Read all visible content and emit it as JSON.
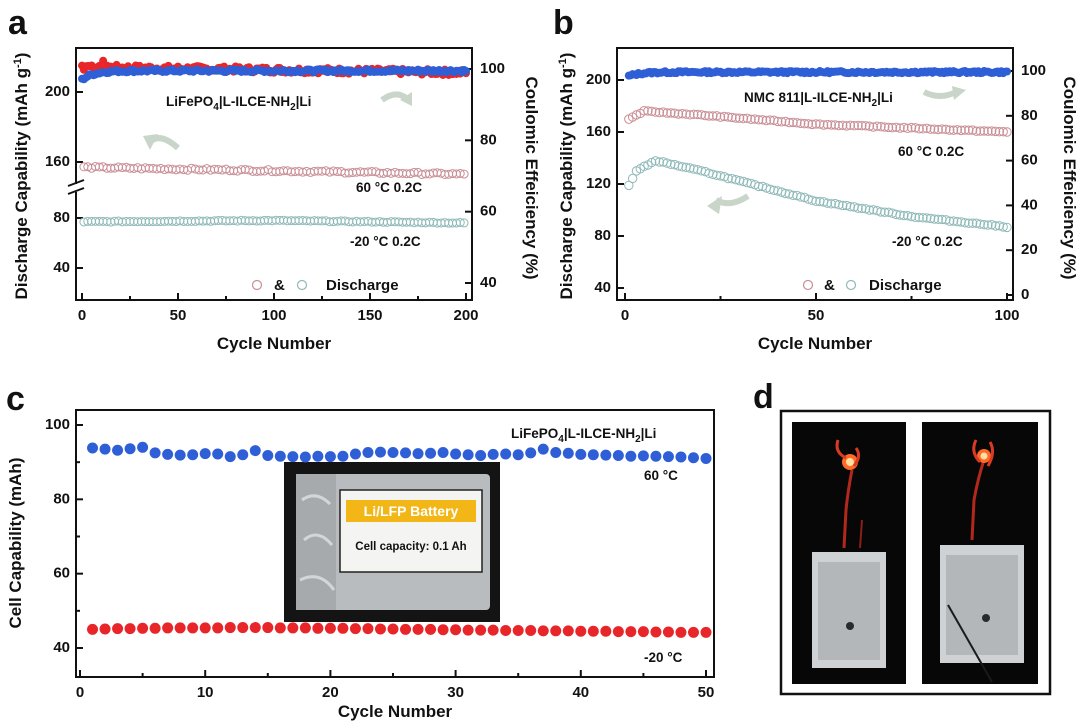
{
  "colors": {
    "red": "#e8262a",
    "blue": "#2f5fd6",
    "pink_open": "#c98f96",
    "cyan_open": "#8fb9b9",
    "arrow": "#c9d5c9",
    "inset_label_bg": "#f2b616"
  },
  "panel_letters": [
    "a",
    "b",
    "c",
    "d"
  ],
  "chart_data": [
    {
      "panel": "a",
      "type": "scatter",
      "xlabel": "Cycle Number",
      "ylabel_left": "Discharge Capability (mAh g",
      "ylabel_left_sup": "-1",
      "ylabel_left_close": ")",
      "ylabel_right": "Coulomic Effeiciency (%)",
      "xlim": [
        0,
        200
      ],
      "xticks": [
        "0",
        "50",
        "100",
        "150",
        "200"
      ],
      "yticks_left": [
        "40",
        "80",
        "160",
        "200"
      ],
      "yticks_right": [
        "40",
        "60",
        "80",
        "100"
      ],
      "ylim_right": [
        40,
        100
      ],
      "axis_break": "between 80 and 160",
      "label_main": "LiFePO",
      "label_sub": "4",
      "label_mid": "|L-ILCE-NH",
      "label_sub2": "2",
      "label_end": "|Li",
      "annotation_60": "60 °C 0.2C",
      "annotation_m20": "-20 °C 0.2C",
      "legend_amp": "&",
      "legend_discharge": "Discharge",
      "series": [
        {
          "name": "60 °C 0.2C",
          "axis": "left",
          "marker": "open",
          "y_start": 157,
          "y_mid": 155,
          "y_end": 153
        },
        {
          "name": "-20 °C 0.2C",
          "axis": "left",
          "marker": "open",
          "y_start": 77,
          "y_mid": 78,
          "y_end": 76
        },
        {
          "axis": "right",
          "marker": "filled",
          "y_start": 97,
          "y_end": 99.5
        },
        {
          "axis": "right",
          "marker": "filled",
          "y_start": 100.5,
          "y_end": 99
        }
      ]
    },
    {
      "panel": "b",
      "type": "scatter",
      "xlabel": "Cycle Number",
      "ylabel_left": "Discharge Capability (mAh g",
      "ylabel_left_sup": "-1",
      "ylabel_left_close": ")",
      "ylabel_right": "Coulomic Effeiciency (%)",
      "xlim": [
        0,
        100
      ],
      "xticks": [
        "0",
        "50",
        "100"
      ],
      "yticks_left": [
        "40",
        "80",
        "120",
        "160",
        "200"
      ],
      "ylim_left": [
        30,
        215
      ],
      "yticks_right": [
        "0",
        "20",
        "40",
        "60",
        "80",
        "100"
      ],
      "ylim_right": [
        0,
        105
      ],
      "label_main": "NMC 811|L-ILCE-NH",
      "label_sub": "2",
      "label_end": "|Li",
      "annotation_60": "60 °C 0.2C",
      "annotation_m20": "-20 °C 0.2C",
      "legend_amp": "&",
      "legend_discharge": "Discharge",
      "series": [
        {
          "name": "60 °C 0.2C",
          "axis": "left",
          "marker": "open",
          "points": [
            [
              1,
              170
            ],
            [
              5,
              176
            ],
            [
              20,
              173
            ],
            [
              50,
              166
            ],
            [
              100,
              160
            ]
          ]
        },
        {
          "name": "-20 °C 0.2C",
          "axis": "left",
          "marker": "open",
          "points": [
            [
              1,
              119
            ],
            [
              3,
              130
            ],
            [
              8,
              138
            ],
            [
              20,
              130
            ],
            [
              50,
              107
            ],
            [
              75,
              95
            ],
            [
              100,
              87
            ]
          ]
        },
        {
          "axis": "right",
          "marker": "filled",
          "y_start": 97,
          "y_end": 99.5
        }
      ]
    },
    {
      "panel": "c",
      "type": "scatter",
      "xlabel": "Cycle Number",
      "ylabel": "Cell Capability (mAh)",
      "xlim": [
        0,
        50
      ],
      "xticks": [
        "0",
        "10",
        "20",
        "30",
        "40",
        "50"
      ],
      "ylim": [
        35,
        103
      ],
      "yticks": [
        "40",
        "60",
        "80",
        "100"
      ],
      "label_main": "LiFePO",
      "label_sub": "4",
      "label_mid": "|L-ILCE-NH",
      "label_sub2": "2",
      "label_end": "|Li",
      "annotation_60": "60 °C",
      "annotation_m20": "-20 °C",
      "inset_title": "Li/LFP Battery",
      "inset_capacity": "Cell capacity: 0.1 Ah",
      "series": [
        {
          "name": "60 °C",
          "marker": "filled",
          "values": [
            93.8,
            93.5,
            93.2,
            93.6,
            94.0,
            92.5,
            92.1,
            91.9,
            92.0,
            92.3,
            92.2,
            91.5,
            92.0,
            93.1,
            91.8,
            91.6,
            91.5,
            91.4,
            91.6,
            91.5,
            91.6,
            92.2,
            92.6,
            92.7,
            92.6,
            92.5,
            92.3,
            92.4,
            92.6,
            92.2,
            92.0,
            91.8,
            92.1,
            92.2,
            92.0,
            92.5,
            93.5,
            92.6,
            92.4,
            92.1,
            92.0,
            91.9,
            91.8,
            91.6,
            91.7,
            91.6,
            91.5,
            91.4,
            91.2,
            91.0
          ]
        },
        {
          "name": "-20 °C",
          "marker": "filled",
          "values": [
            45.0,
            45.1,
            45.2,
            45.2,
            45.3,
            45.3,
            45.4,
            45.4,
            45.4,
            45.4,
            45.4,
            45.5,
            45.5,
            45.5,
            45.5,
            45.4,
            45.4,
            45.4,
            45.3,
            45.3,
            45.3,
            45.2,
            45.2,
            45.1,
            45.1,
            45.0,
            45.0,
            45.0,
            44.9,
            44.9,
            44.8,
            44.8,
            44.8,
            44.7,
            44.7,
            44.7,
            44.6,
            44.6,
            44.6,
            44.5,
            44.5,
            44.5,
            44.4,
            44.4,
            44.4,
            44.3,
            44.3,
            44.2,
            44.2,
            44.2
          ]
        }
      ]
    }
  ]
}
